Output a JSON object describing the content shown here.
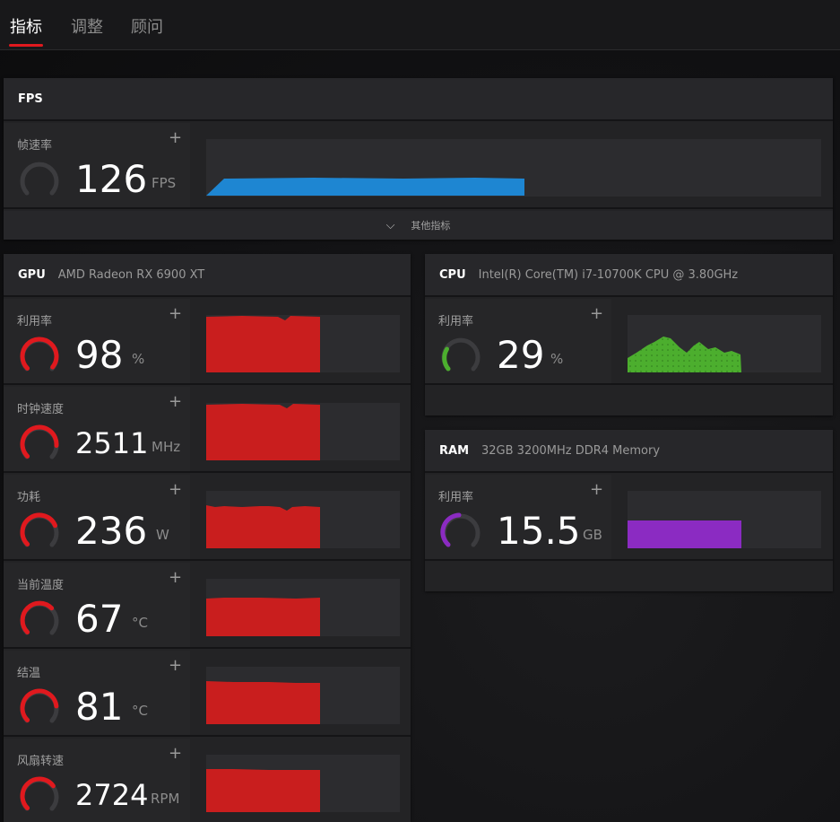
{
  "tabs": [
    {
      "label": "指标",
      "active": true
    },
    {
      "label": "调整",
      "active": false
    },
    {
      "label": "顾问",
      "active": false
    }
  ],
  "fps": {
    "header": "FPS",
    "metric": {
      "label": "帧速率",
      "value": "126",
      "unit": "FPS"
    },
    "expand_label": "其他指标"
  },
  "gpu": {
    "header": "GPU",
    "device": "AMD Radeon RX 6900 XT",
    "metrics": [
      {
        "label": "利用率",
        "value": "98",
        "unit": "%",
        "level": 0.98
      },
      {
        "label": "时钟速度",
        "value": "2511",
        "unit": "MHz",
        "level": 0.85
      },
      {
        "label": "功耗",
        "value": "236",
        "unit": "W",
        "level": 0.75
      },
      {
        "label": "当前温度",
        "value": "67",
        "unit": "°C",
        "level": 0.67
      },
      {
        "label": "结温",
        "value": "81",
        "unit": "°C",
        "level": 0.81
      },
      {
        "label": "风扇转速",
        "value": "2724",
        "unit": "RPM",
        "level": 0.7
      }
    ]
  },
  "cpu": {
    "header": "CPU",
    "device": "Intel(R) Core(TM) i7-10700K CPU @ 3.80GHz",
    "metric": {
      "label": "利用率",
      "value": "29",
      "unit": "%",
      "level": 0.29
    }
  },
  "ram": {
    "header": "RAM",
    "device": "32GB 3200MHz DDR4 Memory",
    "metric": {
      "label": "利用率",
      "value": "15.5",
      "unit": "GB",
      "level": 0.48
    }
  },
  "colors": {
    "accent": "#e0191e",
    "gpu_graph": "#c91e1e",
    "fps_graph": "#1e86d2",
    "cpu_graph": "#4cae2e",
    "ram_graph": "#8b2bc2",
    "gauge_track": "#3c3c3f"
  },
  "icons": {
    "plus": "+",
    "chevron": "⌵"
  }
}
